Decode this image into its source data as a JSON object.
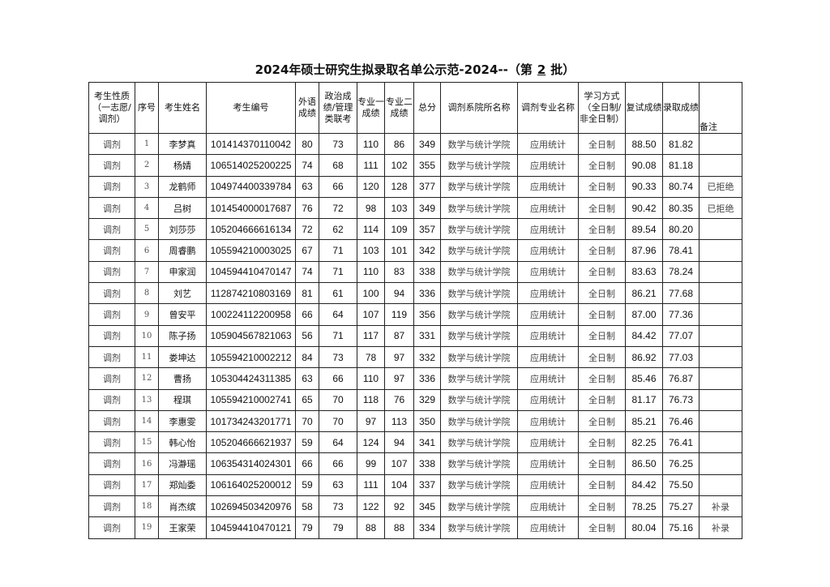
{
  "title": {
    "prefix": "2024年硕士研究生拟录取名单公示范-2024--（第",
    "batch": "2",
    "suffix": "批）"
  },
  "headers": [
    "考生性质（一志愿/调剂）",
    "序号",
    "考生姓名",
    "考生编号",
    "外语成绩",
    "政治成绩/管理类联考",
    "专业一成绩",
    "专业二成绩",
    "总分",
    "调剂系院所名称",
    "调剂专业名称",
    "学习方式（全日制/非全日制）",
    "复试成绩",
    "录取成绩",
    "备注"
  ],
  "rows": [
    [
      "调剂",
      "1",
      "李梦真",
      "101414370110042",
      "80",
      "73",
      "110",
      "86",
      "349",
      "数学与统计学院",
      "应用统计",
      "全日制",
      "88.50",
      "81.82",
      ""
    ],
    [
      "调剂",
      "2",
      "杨婧",
      "106514025200225",
      "74",
      "68",
      "111",
      "102",
      "355",
      "数学与统计学院",
      "应用统计",
      "全日制",
      "90.08",
      "81.18",
      ""
    ],
    [
      "调剂",
      "3",
      "龙鹤师",
      "104974400339784",
      "63",
      "66",
      "120",
      "128",
      "377",
      "数学与统计学院",
      "应用统计",
      "全日制",
      "90.33",
      "80.74",
      "已拒绝"
    ],
    [
      "调剂",
      "4",
      "吕树",
      "101454000017687",
      "76",
      "72",
      "98",
      "103",
      "349",
      "数学与统计学院",
      "应用统计",
      "全日制",
      "90.42",
      "80.35",
      "已拒绝"
    ],
    [
      "调剂",
      "5",
      "刘莎莎",
      "105204666616134",
      "72",
      "62",
      "114",
      "109",
      "357",
      "数学与统计学院",
      "应用统计",
      "全日制",
      "89.54",
      "80.20",
      ""
    ],
    [
      "调剂",
      "6",
      "周睿鹏",
      "105594210003025",
      "67",
      "71",
      "103",
      "101",
      "342",
      "数学与统计学院",
      "应用统计",
      "全日制",
      "87.96",
      "78.41",
      ""
    ],
    [
      "调剂",
      "7",
      "申家润",
      "104594410470147",
      "74",
      "71",
      "110",
      "83",
      "338",
      "数学与统计学院",
      "应用统计",
      "全日制",
      "83.63",
      "78.24",
      ""
    ],
    [
      "调剂",
      "8",
      "刘艺",
      "112874210803169",
      "81",
      "61",
      "100",
      "94",
      "336",
      "数学与统计学院",
      "应用统计",
      "全日制",
      "86.21",
      "77.68",
      ""
    ],
    [
      "调剂",
      "9",
      "曾安平",
      "100224112200958",
      "66",
      "64",
      "107",
      "119",
      "356",
      "数学与统计学院",
      "应用统计",
      "全日制",
      "87.00",
      "77.36",
      ""
    ],
    [
      "调剂",
      "10",
      "陈子扬",
      "105904567821063",
      "56",
      "71",
      "117",
      "87",
      "331",
      "数学与统计学院",
      "应用统计",
      "全日制",
      "84.42",
      "77.07",
      ""
    ],
    [
      "调剂",
      "11",
      "娄坤达",
      "105594210002212",
      "84",
      "73",
      "78",
      "97",
      "332",
      "数学与统计学院",
      "应用统计",
      "全日制",
      "86.92",
      "77.03",
      ""
    ],
    [
      "调剂",
      "12",
      "曹扬",
      "105304424311385",
      "63",
      "66",
      "110",
      "97",
      "336",
      "数学与统计学院",
      "应用统计",
      "全日制",
      "85.46",
      "76.87",
      ""
    ],
    [
      "调剂",
      "13",
      "程琪",
      "105594210002741",
      "65",
      "70",
      "118",
      "76",
      "329",
      "数学与统计学院",
      "应用统计",
      "全日制",
      "81.17",
      "76.73",
      ""
    ],
    [
      "调剂",
      "14",
      "李惠雯",
      "101734243201771",
      "70",
      "70",
      "97",
      "113",
      "350",
      "数学与统计学院",
      "应用统计",
      "全日制",
      "85.21",
      "76.46",
      ""
    ],
    [
      "调剂",
      "15",
      "韩心怡",
      "105204666621937",
      "59",
      "64",
      "124",
      "94",
      "341",
      "数学与统计学院",
      "应用统计",
      "全日制",
      "82.25",
      "76.41",
      ""
    ],
    [
      "调剂",
      "16",
      "冯瀞瑶",
      "106354314024301",
      "66",
      "66",
      "99",
      "107",
      "338",
      "数学与统计学院",
      "应用统计",
      "全日制",
      "86.50",
      "76.25",
      ""
    ],
    [
      "调剂",
      "17",
      "郑灿委",
      "106164025200012",
      "59",
      "63",
      "111",
      "104",
      "337",
      "数学与统计学院",
      "应用统计",
      "全日制",
      "84.42",
      "75.50",
      ""
    ],
    [
      "调剂",
      "18",
      "肖杰缤",
      "102694503420976",
      "58",
      "73",
      "122",
      "92",
      "345",
      "数学与统计学院",
      "应用统计",
      "全日制",
      "78.25",
      "75.27",
      "补录"
    ],
    [
      "调剂",
      "19",
      "王家荣",
      "104594410470121",
      "79",
      "79",
      "88",
      "88",
      "334",
      "数学与统计学院",
      "应用统计",
      "全日制",
      "80.04",
      "75.16",
      "补录"
    ]
  ]
}
